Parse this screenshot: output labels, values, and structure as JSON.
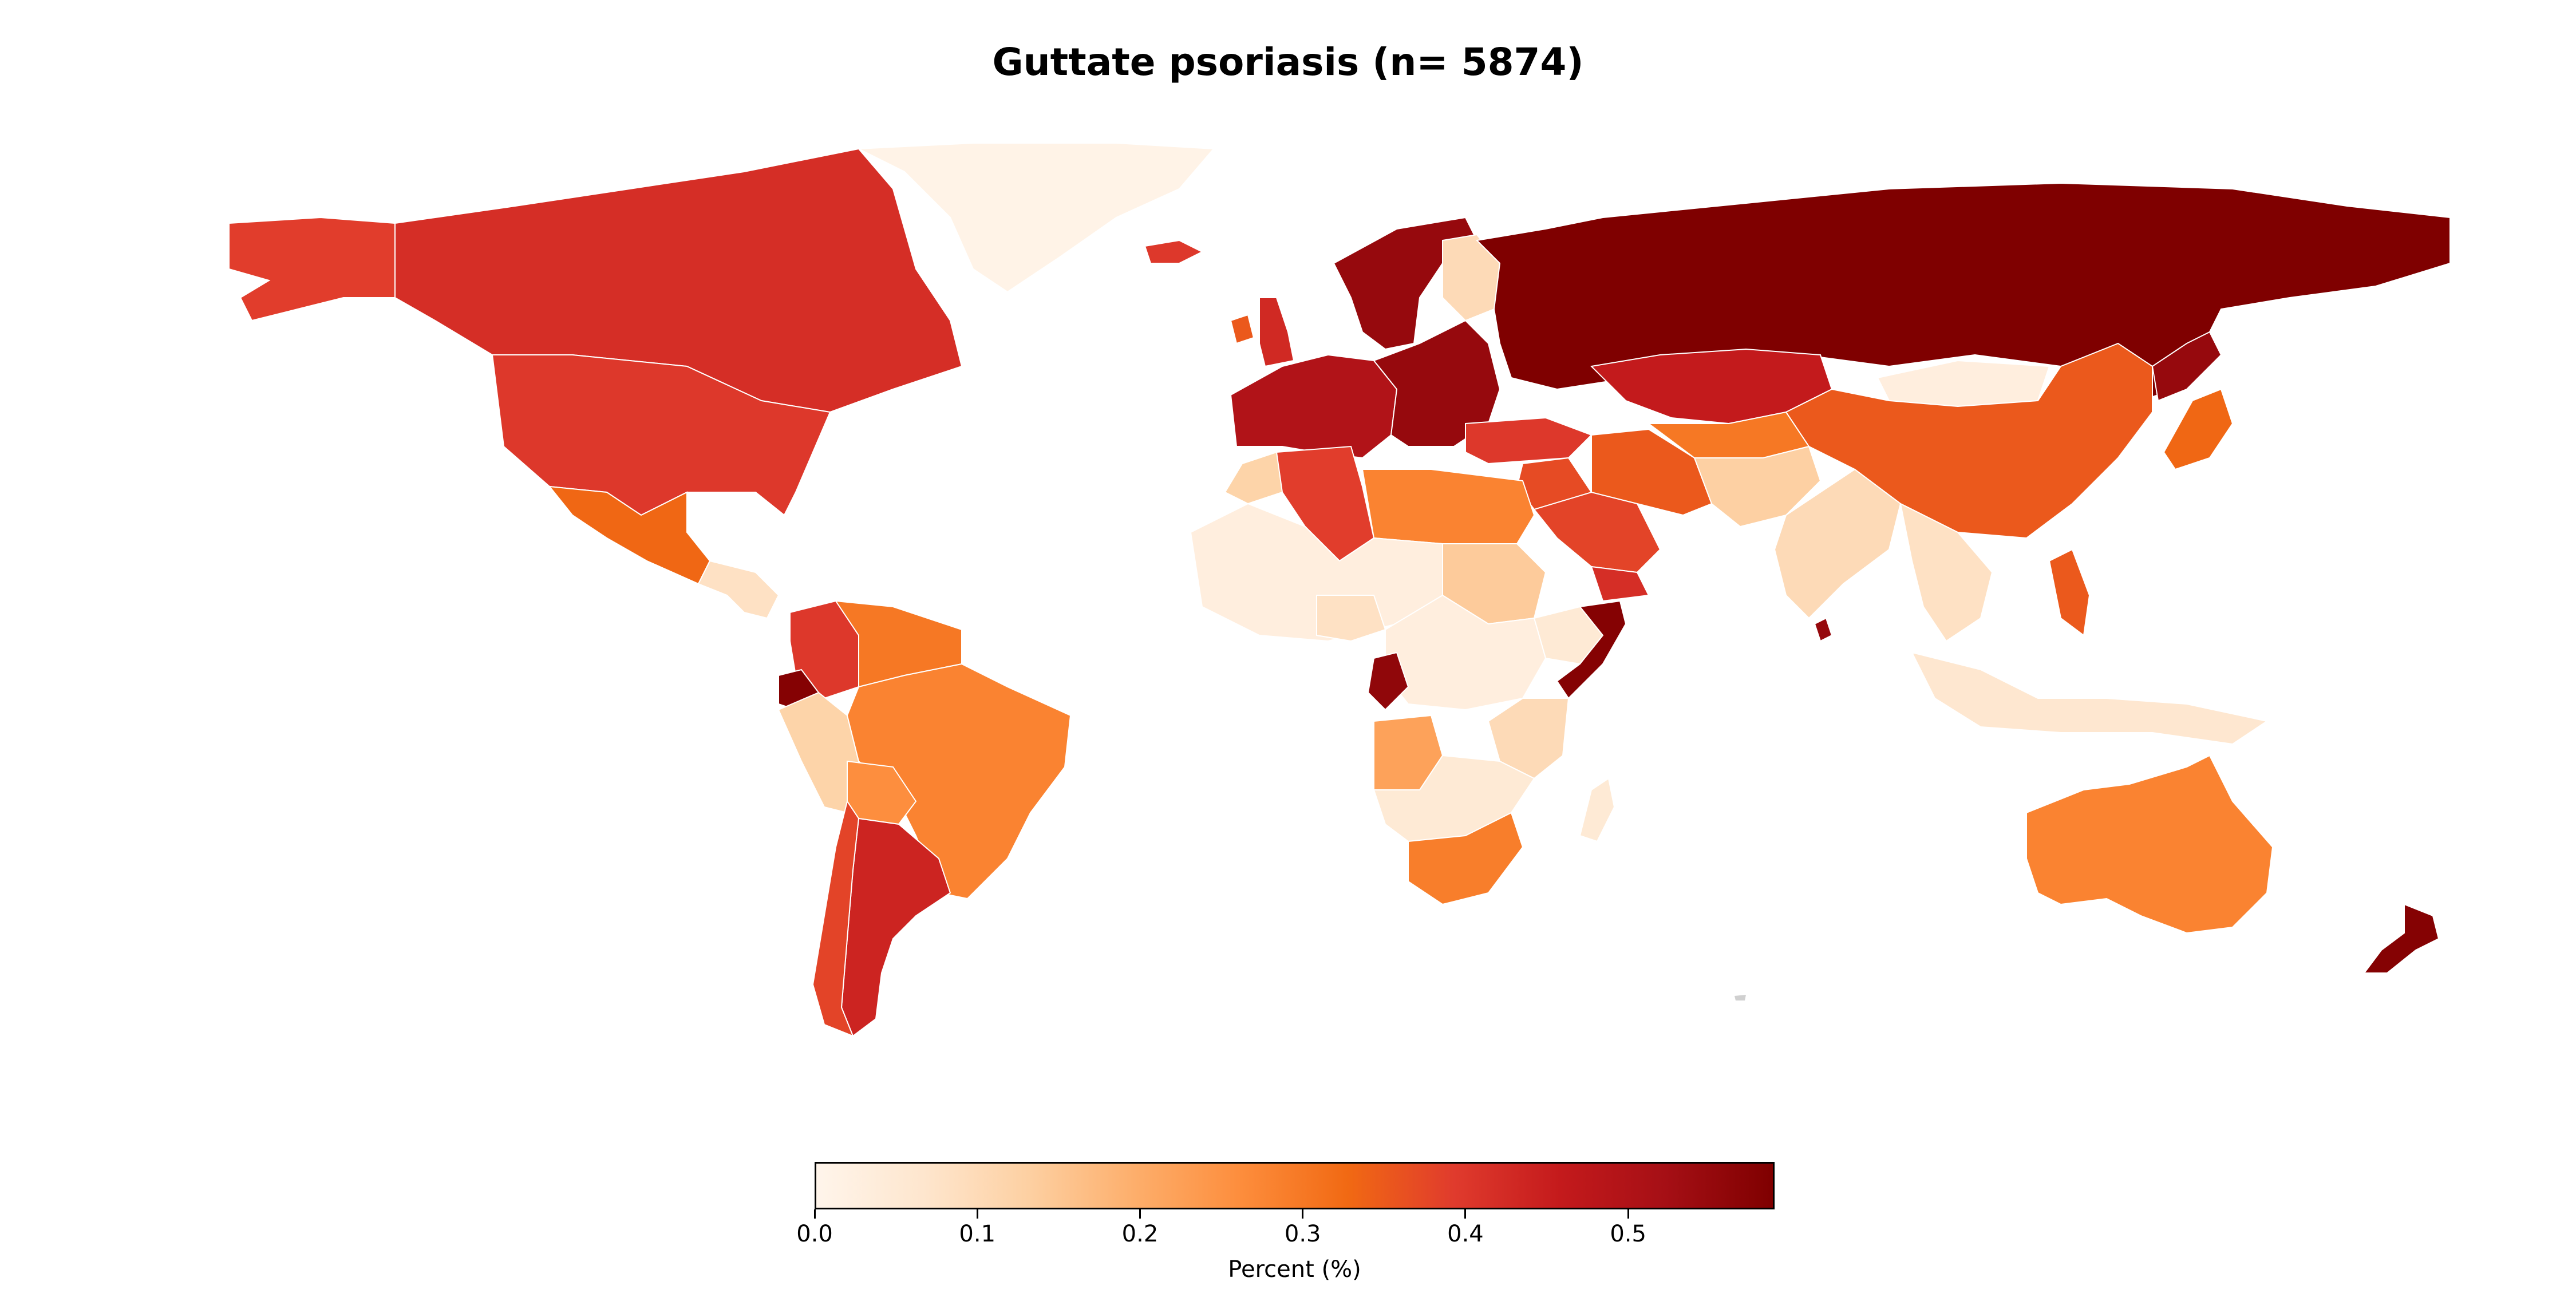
{
  "title": "Guttate psoriasis (n= 5874)",
  "colorbar": {
    "label": "Percent (%)",
    "min": 0.0,
    "max": 0.59,
    "ticks": [
      "0.0",
      "0.1",
      "0.2",
      "0.3",
      "0.4",
      "0.5"
    ],
    "colormap": [
      "#fff5eb",
      "#fee6ce",
      "#fdd0a2",
      "#fdae6b",
      "#fd8d3c",
      "#f16913",
      "#e03b2d",
      "#c41a1c",
      "#a50f15",
      "#7f0000"
    ]
  },
  "colors": {
    "very_low": "#fff5eb",
    "low": "#fde1bd",
    "mid_low": "#fbaa74",
    "mid": "#f47a56",
    "mid_high": "#e55137",
    "high": "#d73a2a",
    "very_high": "#bf1116",
    "max": "#870000",
    "nodata": "#d0d0d0"
  },
  "regions": [
    {
      "name": "Canada",
      "value": 0.42
    },
    {
      "name": "United States",
      "value": 0.4
    },
    {
      "name": "Alaska",
      "value": 0.39
    },
    {
      "name": "Greenland",
      "value": 0.01
    },
    {
      "name": "Mexico",
      "value": 0.33
    },
    {
      "name": "Central America",
      "value": 0.08
    },
    {
      "name": "Colombia",
      "value": 0.4
    },
    {
      "name": "Venezuela",
      "value": 0.3
    },
    {
      "name": "Ecuador",
      "value": 0.58
    },
    {
      "name": "Peru",
      "value": 0.12
    },
    {
      "name": "Brazil",
      "value": 0.28
    },
    {
      "name": "Bolivia",
      "value": 0.26
    },
    {
      "name": "Argentina",
      "value": 0.44
    },
    {
      "name": "Chile",
      "value": 0.38
    },
    {
      "name": "Iceland",
      "value": 0.4
    },
    {
      "name": "Ireland",
      "value": 0.35
    },
    {
      "name": "United Kingdom",
      "value": 0.43
    },
    {
      "name": "Scandinavia",
      "value": 0.55
    },
    {
      "name": "Finland",
      "value": 0.1
    },
    {
      "name": "Western Europe",
      "value": 0.5
    },
    {
      "name": "Eastern Europe",
      "value": 0.55
    },
    {
      "name": "Russia",
      "value": 0.59
    },
    {
      "name": "Kazakhstan",
      "value": 0.46
    },
    {
      "name": "Mongolia",
      "value": 0.03
    },
    {
      "name": "China",
      "value": 0.35
    },
    {
      "name": "Japan",
      "value": 0.33
    },
    {
      "name": "Korea",
      "value": 0.55
    },
    {
      "name": "Turkey",
      "value": 0.4
    },
    {
      "name": "Middle East",
      "value": 0.37
    },
    {
      "name": "Saudi Arabia",
      "value": 0.38
    },
    {
      "name": "Yemen",
      "value": 0.42
    },
    {
      "name": "Iran",
      "value": 0.35
    },
    {
      "name": "Central Asia",
      "value": 0.3
    },
    {
      "name": "Afghanistan and Pakistan",
      "value": 0.13
    },
    {
      "name": "India",
      "value": 0.1
    },
    {
      "name": "Sri Lanka",
      "value": 0.55
    },
    {
      "name": "Southeast Asia",
      "value": 0.08
    },
    {
      "name": "Philippines",
      "value": 0.35
    },
    {
      "name": "Indonesia",
      "value": 0.06
    },
    {
      "name": "Australia",
      "value": 0.28
    },
    {
      "name": "New Zealand",
      "value": 0.58
    },
    {
      "name": "Morocco",
      "value": 0.12
    },
    {
      "name": "Algeria",
      "value": 0.39
    },
    {
      "name": "Libya and Egypt",
      "value": 0.28
    },
    {
      "name": "West Africa",
      "value": 0.03
    },
    {
      "name": "Nigeria",
      "value": 0.08
    },
    {
      "name": "Sudan",
      "value": 0.14
    },
    {
      "name": "Ethiopia",
      "value": 0.05
    },
    {
      "name": "Somalia",
      "value": 0.58
    },
    {
      "name": "Central Africa",
      "value": 0.03
    },
    {
      "name": "Gabon and Congo",
      "value": 0.56
    },
    {
      "name": "East Africa",
      "value": 0.1
    },
    {
      "name": "Angola",
      "value": 0.22
    },
    {
      "name": "Southern Africa",
      "value": 0.05
    },
    {
      "name": "South Africa",
      "value": 0.29
    },
    {
      "name": "Madagascar",
      "value": 0.05
    }
  ]
}
